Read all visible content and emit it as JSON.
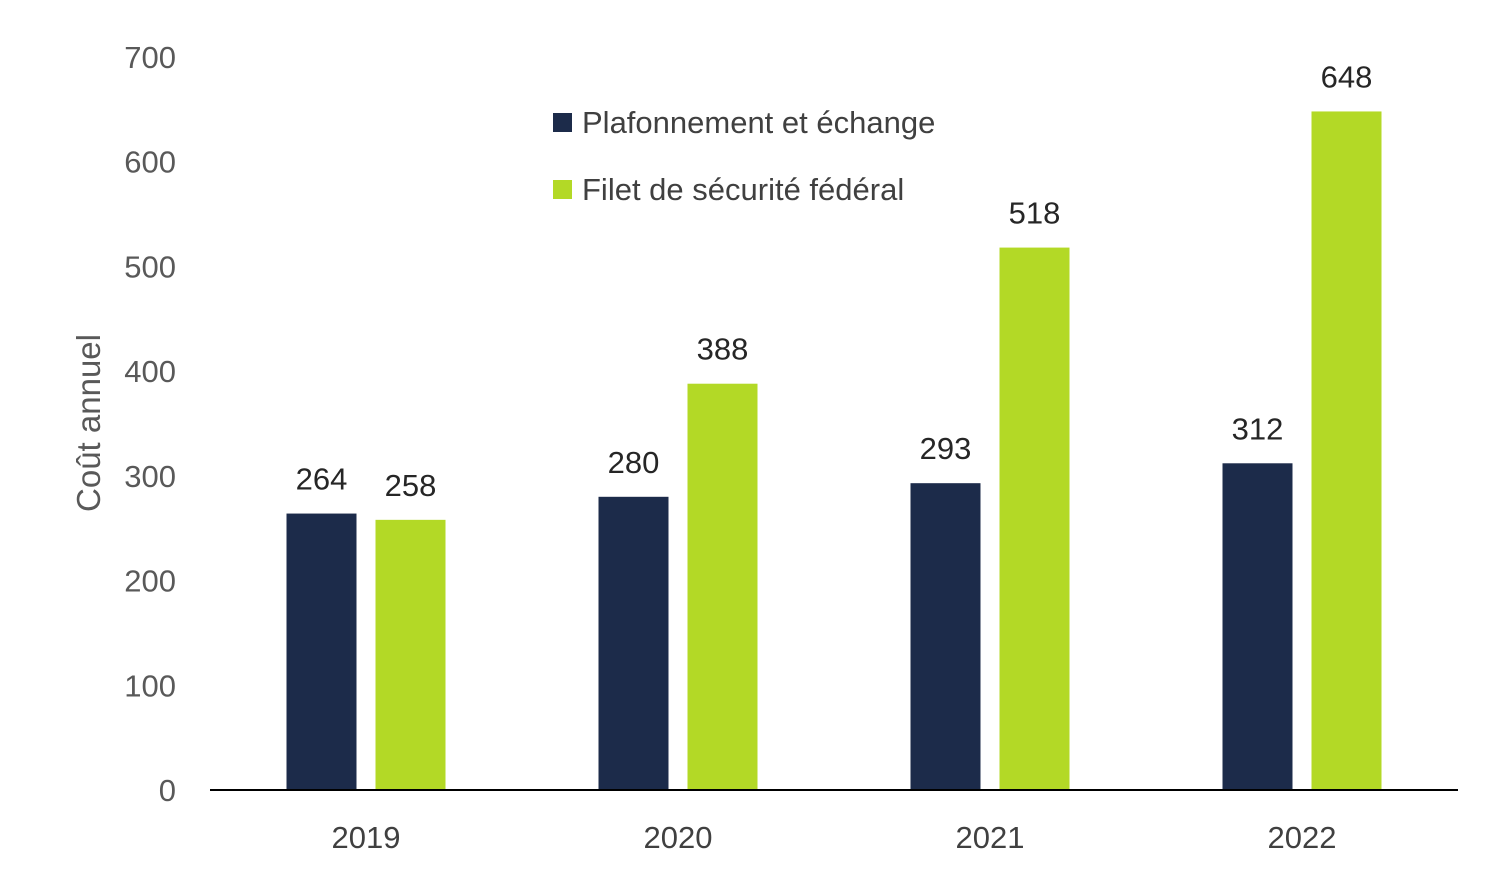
{
  "chart_data": {
    "type": "bar",
    "title": "",
    "xlabel": "",
    "ylabel": "Coût annuel",
    "ylim": [
      0,
      700
    ],
    "yticks": [
      0,
      100,
      200,
      300,
      400,
      500,
      600,
      700
    ],
    "ytick_labels": [
      "0",
      "100",
      "200",
      "300",
      "400",
      "500",
      "600",
      "700"
    ],
    "grid": false,
    "legend_position": "top-center",
    "categories": [
      "2019",
      "2020",
      "2021",
      "2022"
    ],
    "series": [
      {
        "name": "Plafonnement et échange",
        "color": "#1c2b4a",
        "values": [
          264,
          280,
          293,
          312
        ],
        "labels": [
          "264",
          "280",
          "293",
          "312"
        ]
      },
      {
        "name": "Filet de sécurité fédéral",
        "color": "#b3d926",
        "values": [
          258,
          388,
          518,
          648
        ],
        "labels": [
          "258",
          "388",
          "518",
          "648"
        ]
      }
    ]
  }
}
